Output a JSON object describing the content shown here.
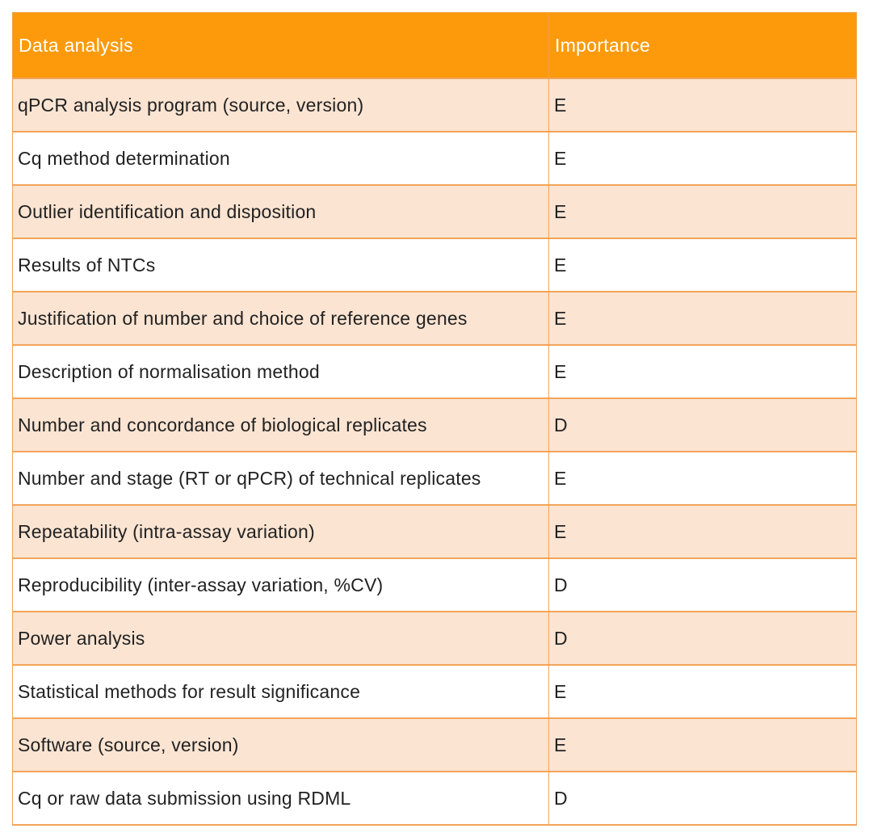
{
  "table": {
    "headers": [
      "Data analysis",
      "Importance"
    ],
    "rows": [
      [
        "qPCR analysis program (source, version)",
        "E"
      ],
      [
        "Cq method determination",
        "E"
      ],
      [
        "Outlier identification and disposition",
        "E"
      ],
      [
        "Results of NTCs",
        "E"
      ],
      [
        "Justification of number and choice of reference genes",
        "E"
      ],
      [
        "Description of normalisation method",
        "E"
      ],
      [
        "Number and concordance of biological replicates",
        "D"
      ],
      [
        "Number and stage (RT or qPCR) of technical replicates",
        "E"
      ],
      [
        "Repeatability (intra-assay variation)",
        "E"
      ],
      [
        "Reproducibility (inter-assay variation, %CV)",
        "D"
      ],
      [
        "Power analysis",
        "D"
      ],
      [
        "Statistical methods for result significance",
        "E"
      ],
      [
        "Software (source, version)",
        "E"
      ],
      [
        "Cq or raw data submission using RDML",
        "D"
      ]
    ]
  },
  "colors": {
    "header_bg": "#fc9a0c",
    "header_text": "#ffffff",
    "stripe_bg": "#fbe4d2",
    "border": "#f3a45a"
  }
}
